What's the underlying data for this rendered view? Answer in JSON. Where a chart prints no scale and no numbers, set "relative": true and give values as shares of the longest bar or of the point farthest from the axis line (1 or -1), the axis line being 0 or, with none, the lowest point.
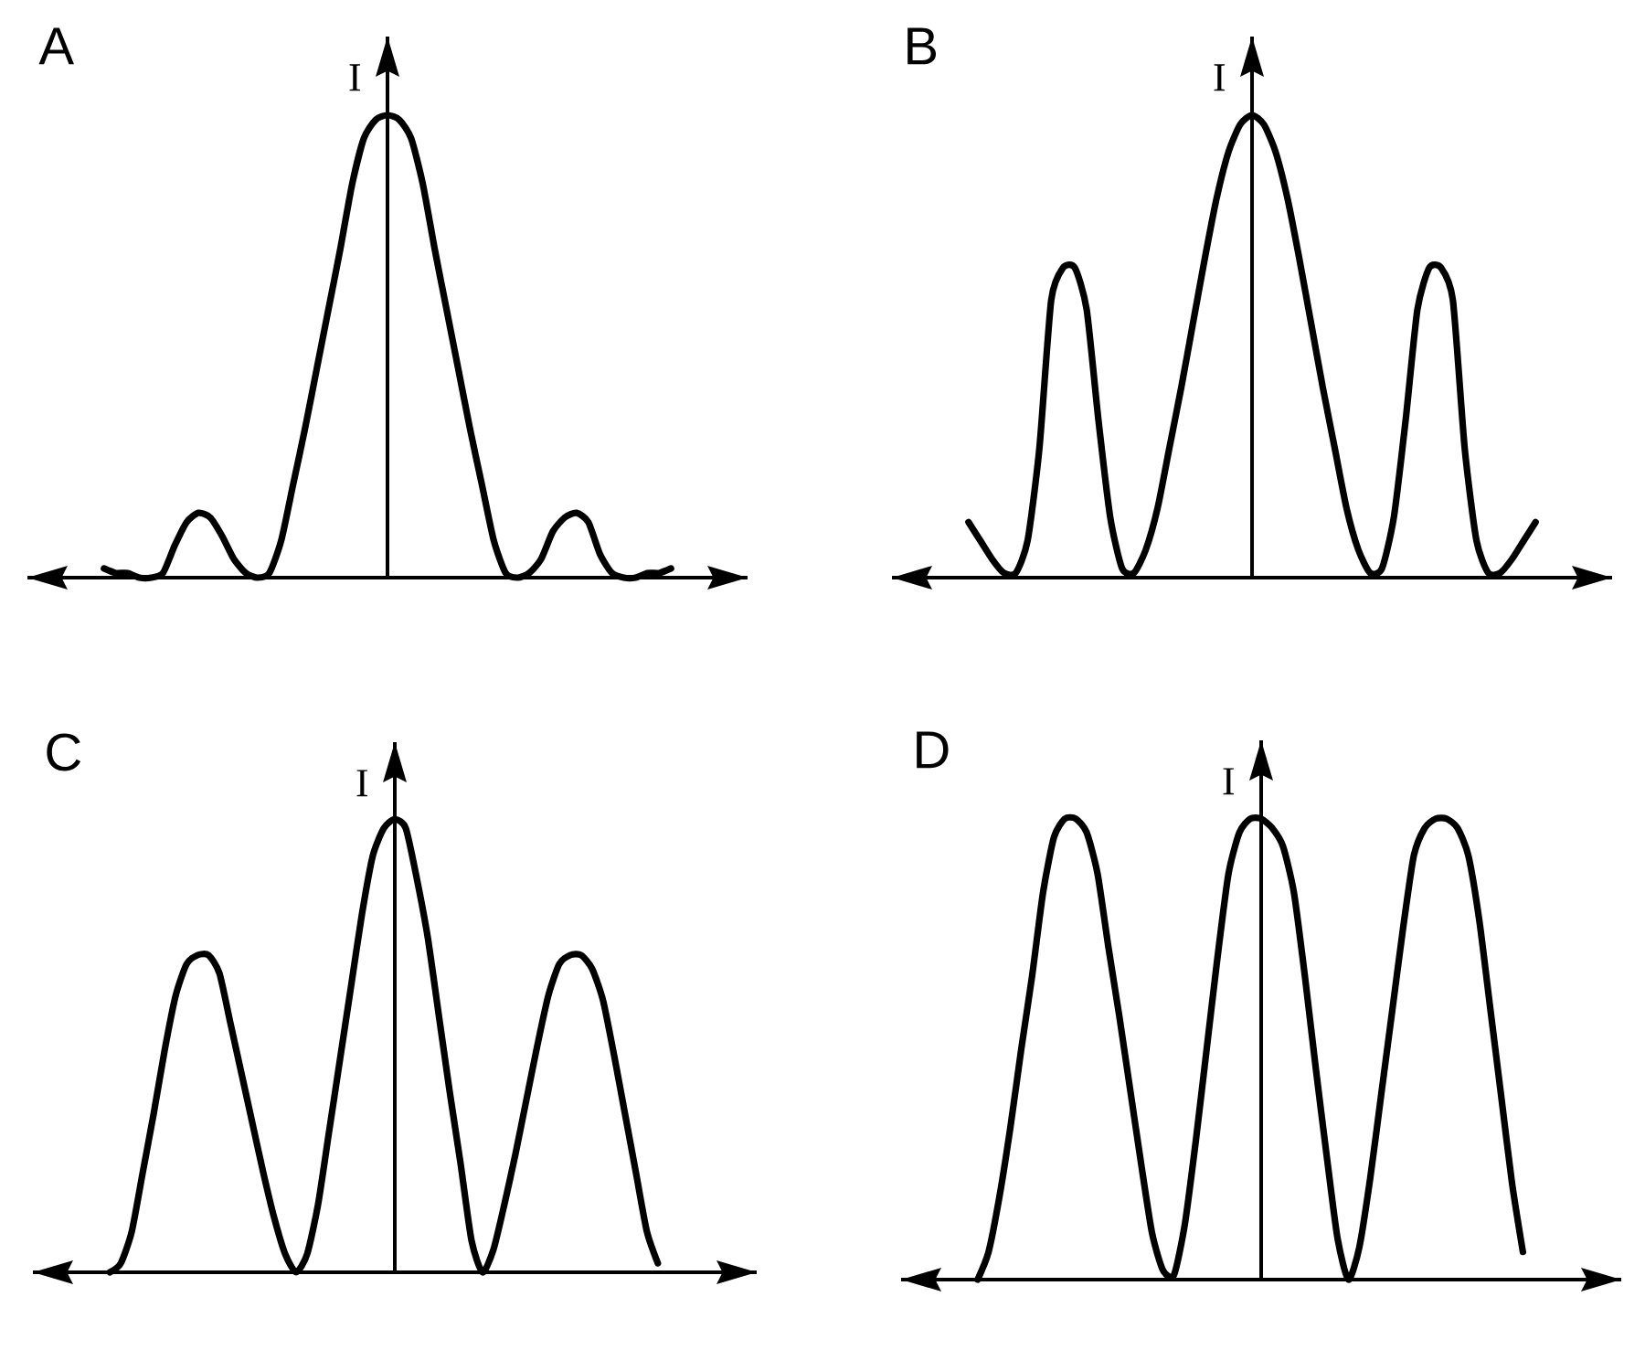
{
  "chart_data": [
    {
      "type": "line",
      "title": "A",
      "ylabel": "I",
      "relative": true,
      "color": "#000000",
      "categories": [
        null,
        null,
        null,
        null,
        null,
        null,
        null,
        null,
        null,
        null,
        null,
        null,
        null,
        null,
        null,
        null,
        null,
        null,
        null,
        null,
        null,
        null,
        null,
        null,
        null,
        null,
        null,
        null,
        null,
        null,
        null,
        null,
        null,
        null,
        null,
        null,
        null,
        null,
        null,
        null,
        null,
        null,
        null,
        null,
        null,
        null,
        null,
        null,
        null
      ],
      "values": [
        0.02,
        0.01,
        0.01,
        0,
        0,
        0.01,
        0.07,
        0.12,
        0.14,
        0.13,
        0.09,
        0.04,
        0.01,
        0,
        0.01,
        0.08,
        0.2,
        0.32,
        0.45,
        0.58,
        0.71,
        0.85,
        0.95,
        0.99,
        1,
        0.99,
        0.95,
        0.85,
        0.71,
        0.58,
        0.45,
        0.32,
        0.2,
        0.08,
        0.01,
        0,
        0.01,
        0.04,
        0.1,
        0.13,
        0.14,
        0.12,
        0.05,
        0.01,
        0,
        0,
        0.01,
        0.01,
        0.02
      ]
    },
    {
      "type": "line",
      "title": "B",
      "ylabel": "I",
      "relative": true,
      "color": "#000000",
      "categories": [
        null,
        null,
        null,
        null,
        null,
        null,
        null,
        null,
        null,
        null,
        null,
        null,
        null,
        null,
        null,
        null,
        null,
        null,
        null,
        null,
        null,
        null,
        null,
        null,
        null,
        null,
        null,
        null,
        null,
        null,
        null,
        null,
        null,
        null,
        null,
        null,
        null,
        null,
        null,
        null,
        null,
        null,
        null,
        null,
        null,
        null,
        null,
        null,
        null
      ],
      "values": [
        0.12,
        0.08,
        0.04,
        0.01,
        0.01,
        0.08,
        0.28,
        0.6,
        0.67,
        0.67,
        0.58,
        0.34,
        0.13,
        0.02,
        0.01,
        0.06,
        0.15,
        0.28,
        0.41,
        0.55,
        0.69,
        0.82,
        0.92,
        0.98,
        1,
        0.98,
        0.92,
        0.82,
        0.69,
        0.55,
        0.41,
        0.28,
        0.15,
        0.06,
        0.01,
        0.02,
        0.13,
        0.34,
        0.58,
        0.67,
        0.67,
        0.6,
        0.28,
        0.08,
        0.01,
        0.01,
        0.04,
        0.08,
        0.12
      ]
    },
    {
      "type": "line",
      "title": "C",
      "ylabel": "I",
      "relative": true,
      "color": "#000000",
      "categories": [
        null,
        null,
        null,
        null,
        null,
        null,
        null,
        null,
        null,
        null,
        null,
        null,
        null,
        null,
        null,
        null,
        null,
        null,
        null,
        null,
        null,
        null,
        null,
        null,
        null,
        null,
        null,
        null,
        null,
        null,
        null,
        null,
        null,
        null,
        null,
        null,
        null,
        null,
        null,
        null,
        null,
        null,
        null,
        null,
        null,
        null,
        null,
        null,
        null,
        null,
        null,
        null,
        null
      ],
      "values": [
        0,
        0.02,
        0.09,
        0.22,
        0.35,
        0.49,
        0.61,
        0.68,
        0.7,
        0.7,
        0.66,
        0.55,
        0.44,
        0.33,
        0.22,
        0.12,
        0.04,
        0,
        0.04,
        0.15,
        0.31,
        0.47,
        0.63,
        0.79,
        0.92,
        0.98,
        1,
        0.98,
        0.87,
        0.74,
        0.57,
        0.4,
        0.24,
        0.07,
        0,
        0.05,
        0.15,
        0.26,
        0.38,
        0.5,
        0.61,
        0.68,
        0.7,
        0.7,
        0.67,
        0.6,
        0.48,
        0.35,
        0.22,
        0.09,
        0.02,
        null,
        null
      ]
    },
    {
      "type": "line",
      "title": "D",
      "ylabel": "I",
      "relative": true,
      "color": "#000000",
      "categories": [
        null,
        null,
        null,
        null,
        null,
        null,
        null,
        null,
        null,
        null,
        null,
        null,
        null,
        null,
        null,
        null,
        null,
        null,
        null,
        null,
        null,
        null,
        null,
        null,
        null,
        null,
        null,
        null,
        null,
        null,
        null,
        null,
        null,
        null,
        null,
        null,
        null,
        null,
        null,
        null,
        null,
        null,
        null,
        null,
        null,
        null,
        null,
        null,
        null,
        null,
        null,
        null,
        null
      ],
      "values": [
        0,
        0.06,
        0.18,
        0.33,
        0.5,
        0.66,
        0.84,
        0.96,
        1,
        1,
        0.97,
        0.88,
        0.72,
        0.57,
        0.41,
        0.25,
        0.1,
        0.02,
        0.01,
        0.12,
        0.3,
        0.5,
        0.7,
        0.88,
        0.97,
        1,
        1,
        0.98,
        0.94,
        0.84,
        0.66,
        0.46,
        0.27,
        0.09,
        0,
        0.07,
        0.22,
        0.4,
        0.58,
        0.76,
        0.92,
        0.98,
        1,
        1,
        0.98,
        0.92,
        0.78,
        0.59,
        0.4,
        0.21,
        0.06,
        null,
        null
      ]
    }
  ]
}
